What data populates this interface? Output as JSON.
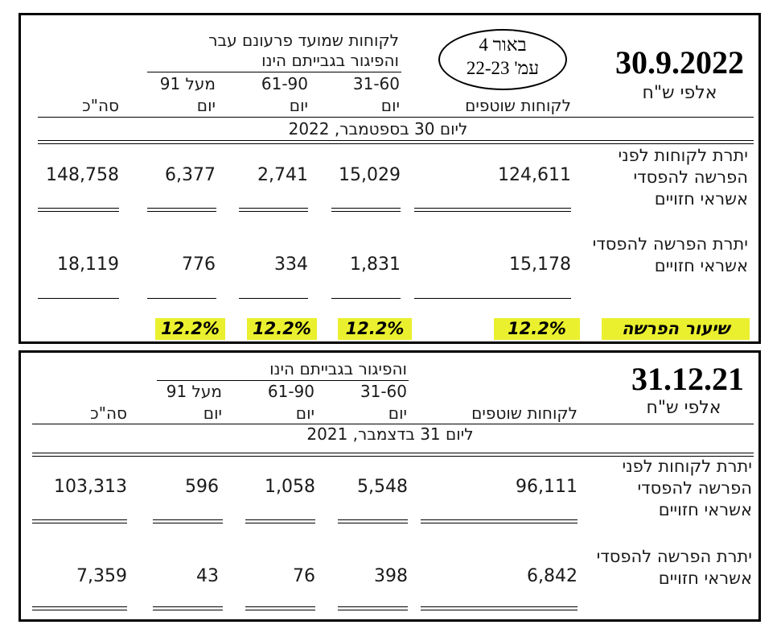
{
  "top": {
    "date": "30.9.2022",
    "unit": "אלפי ש\"ח",
    "note_line1": "באור 4",
    "note_line2": "עמ' 22-23",
    "overdue_header_1": "לקוחות שמועד פרעונם עבר",
    "overdue_header_2": "והפיגור בגבייתם הינו",
    "col_customers": "לקוחות שוטפים",
    "col_3160_range": "31-60",
    "col_3160_unit": "יום",
    "col_6190_range": "61-90",
    "col_6190_unit": "יום",
    "col_91_range": "מעל 91",
    "col_91_unit": "יום",
    "col_total": "סה\"כ",
    "period": "ליום 30 בספטמבר, 2022",
    "rows": [
      {
        "label": "יתרת לקוחות לפני הפרשה להפסדי אשראי חזויים",
        "customers": "124,611",
        "d3160": "15,029",
        "d6190": "2,741",
        "d91": "6,377",
        "total": "148,758"
      },
      {
        "label": "יתרת הפרשה להפסדי אשראי חזויים",
        "customers": "15,178",
        "d3160": "1,831",
        "d6190": "334",
        "d91": "776",
        "total": "18,119"
      }
    ],
    "rate_label": "שיעור הפרשה",
    "rates": {
      "customers": "12.2%",
      "d3160": "12.2%",
      "d6190": "12.2%",
      "d91": "12.2%"
    },
    "highlight_color": "#eaf02d"
  },
  "bottom": {
    "date": "31.12.21",
    "unit": "אלפי ש\"ח",
    "overdue_header": "והפיגור בגבייתם הינו",
    "col_customers": "לקוחות שוטפים",
    "col_3160_range": "31-60",
    "col_3160_unit": "יום",
    "col_6190_range": "61-90",
    "col_6190_unit": "יום",
    "col_91_range": "מעל 91",
    "col_91_unit": "יום",
    "col_total": "סה\"כ",
    "period": "ליום 31 בדצמבר, 2021",
    "rows": [
      {
        "label": "יתרת לקוחות לפני הפרשה להפסדי אשראי חזויים",
        "customers": "96,111",
        "d3160": "5,548",
        "d6190": "1,058",
        "d91": "596",
        "total": "103,313"
      },
      {
        "label": "יתרת הפרשה להפסדי אשראי חזויים",
        "customers": "6,842",
        "d3160": "398",
        "d6190": "76",
        "d91": "43",
        "total": "7,359"
      }
    ]
  }
}
